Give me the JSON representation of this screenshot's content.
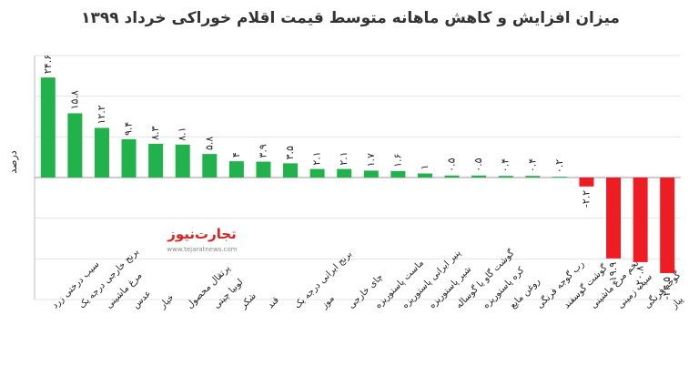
{
  "chart_data": {
    "type": "bar",
    "title": "میزان افزایش و کاهش ماهانه متوسط قیمت اقلام خوراکی خرداد ۱۳۹۹",
    "y_label": "درصد",
    "categories": [
      "سیب درختی زرد",
      "برنج خارجی درجه یک",
      "مرغ ماشینی",
      "عدس",
      "خیار",
      "پرتقال محصول",
      "لوبیا چیتی",
      "شکر",
      "قند",
      "برنج ایرانی درجه یک",
      "موز",
      "چای خارجی",
      "ماست پاستوریزه",
      "پنیر ایرانی پاستوریزه",
      "شیر پاستوریزه",
      "گوشت گاو یا گوساله",
      "کره پاستوریزه",
      "روغن مایع",
      "رب گوجه فرنگی",
      "گوشت گوسفند",
      "تخم مرغ ماشینی",
      "سیب زمینی",
      "گوجه فرنگی",
      "پیاز"
    ],
    "values": [
      24.6,
      15.8,
      12.2,
      9.4,
      8.3,
      8.1,
      5.8,
      4,
      3.9,
      3.5,
      2.1,
      2.1,
      1.7,
      1.6,
      1,
      0.5,
      0.5,
      0.4,
      0.4,
      0.2,
      -2.2,
      -19.9,
      -20.8,
      -23.5
    ],
    "value_labels": [
      "۲۴.۶",
      "۱۵.۸",
      "۱۲.۲",
      "۹.۴",
      "۸.۳",
      "۸.۱",
      "۵.۸",
      "۴",
      "۳.۹",
      "۳.۵",
      "۲.۱",
      "۲.۱",
      "۱.۷",
      "۱.۶",
      "۱",
      "۰.۵",
      "۰.۵",
      "۰.۴",
      "۰.۴",
      "۰.۲",
      "-۲.۲",
      "-۱۹.۹",
      "-۲۰.۸",
      "-۲۳.۵"
    ],
    "positive_color": "#21b24b",
    "negative_color": "#ee1d23",
    "ylim": [
      -30,
      30
    ],
    "yticks": [
      -30,
      -20,
      -10,
      0,
      10,
      20,
      30
    ],
    "grid": true
  },
  "logo": {
    "name": "تجارت‌نیوز",
    "url": "www.tejaratnews.com"
  }
}
